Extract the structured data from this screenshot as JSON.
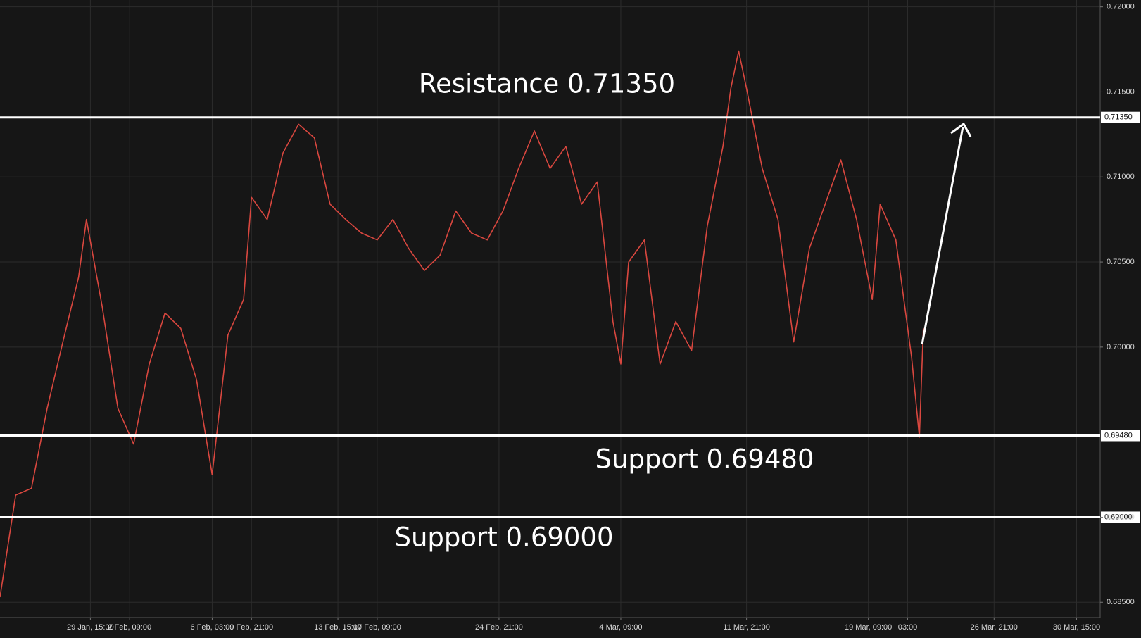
{
  "chart_data": {
    "type": "line",
    "x": [
      0,
      4,
      8,
      12,
      16,
      20,
      22,
      26,
      30,
      34,
      38,
      42,
      46,
      50,
      54,
      58,
      62,
      64,
      68,
      72,
      76,
      80,
      84,
      88,
      92,
      96,
      100,
      104,
      108,
      112,
      116,
      120,
      124,
      128,
      132,
      136,
      140,
      144,
      148,
      152,
      156,
      158,
      160,
      164,
      168,
      172,
      176,
      180,
      184,
      186,
      188,
      190,
      194,
      198,
      202,
      206,
      210,
      214,
      218,
      222,
      224,
      228,
      232,
      234,
      235
    ],
    "series": [
      {
        "color": "#d9473f",
        "values": [
          0.6853,
          0.6913,
          0.6917,
          0.6964,
          0.7003,
          0.7041,
          0.7075,
          0.7024,
          0.6964,
          0.6943,
          0.699,
          0.702,
          0.7011,
          0.6981,
          0.6925,
          0.7007,
          0.7028,
          0.7088,
          0.7075,
          0.7114,
          0.7131,
          0.7123,
          0.7084,
          0.7075,
          0.7067,
          0.7063,
          0.7075,
          0.7058,
          0.7045,
          0.7054,
          0.708,
          0.7067,
          0.7063,
          0.708,
          0.7105,
          0.7127,
          0.7105,
          0.7118,
          0.7084,
          0.7097,
          0.7015,
          0.699,
          0.705,
          0.7063,
          0.699,
          0.7015,
          0.6998,
          0.7071,
          0.7118,
          0.7152,
          0.7174,
          0.7152,
          0.7105,
          0.7075,
          0.7003,
          0.7058,
          0.7084,
          0.711,
          0.7075,
          0.7028,
          0.7084,
          0.7063,
          0.6994,
          0.6947,
          0.7011
        ]
      }
    ],
    "xlim": [
      0,
      280
    ],
    "xticks": [
      {
        "value": 23,
        "label": "29 Jan, 15:00"
      },
      {
        "value": 33,
        "label": "2 Feb, 09:00"
      },
      {
        "value": 54,
        "label": "6 Feb, 03:00"
      },
      {
        "value": 64,
        "label": "9 Feb, 21:00"
      },
      {
        "value": 86,
        "label": "13 Feb, 15:00"
      },
      {
        "value": 96,
        "label": "17 Feb, 09:00"
      },
      {
        "value": 127,
        "label": "24 Feb, 21:00"
      },
      {
        "value": 158,
        "label": "4 Mar, 09:00"
      },
      {
        "value": 190,
        "label": "11 Mar, 21:00"
      },
      {
        "value": 221,
        "label": "19 Mar, 09:00"
      },
      {
        "value": 231,
        "label": "03:00"
      },
      {
        "value": 253,
        "label": "26 Mar, 21:00"
      },
      {
        "value": 274,
        "label": "30 Mar, 15:00"
      }
    ],
    "ylim": [
      0.6841,
      0.7204
    ],
    "yticks": [
      {
        "value": 0.72,
        "label": "0.72000"
      },
      {
        "value": 0.715,
        "label": "0.71500"
      },
      {
        "value": 0.71,
        "label": "0.71000"
      },
      {
        "value": 0.705,
        "label": "0.70500"
      },
      {
        "value": 0.7,
        "label": "0.70000"
      },
      {
        "value": 0.69,
        "label": "0.69000"
      },
      {
        "value": 0.685,
        "label": "0.68500"
      }
    ],
    "grid": true,
    "levels": [
      {
        "value": 0.7135,
        "label": "0.71350",
        "text": "Resistance 0.71350"
      },
      {
        "value": 0.6948,
        "label": "0.69480",
        "text": "Support 0.69480"
      },
      {
        "value": 0.69,
        "label": "0.69000",
        "text": "Support 0.69000"
      }
    ]
  }
}
